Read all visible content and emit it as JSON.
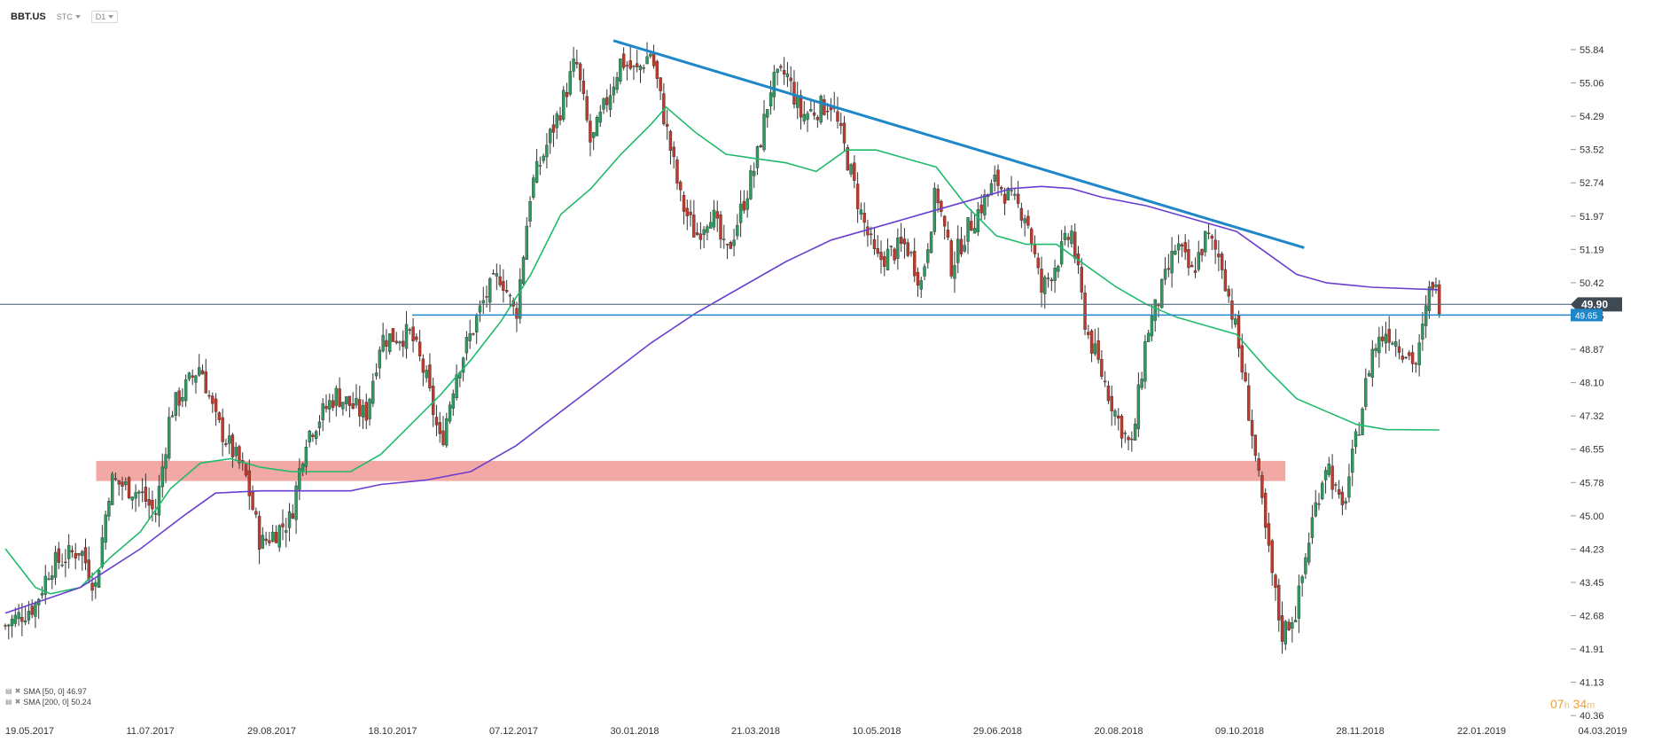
{
  "header": {
    "symbol": "BBT.US",
    "source": "STC",
    "interval": "D1"
  },
  "legend": {
    "sma50_label": "SMA [50, 0] 46.97",
    "sma200_label": "SMA [200, 0] 50.24"
  },
  "timer": {
    "hours": "07",
    "hours_unit": "h",
    "minutes": "34",
    "minutes_unit": "m"
  },
  "colors": {
    "candle_up": "#2e9a5f",
    "candle_down": "#c0392b",
    "candle_wick": "#333333",
    "sma50": "#1fba6b",
    "sma200": "#6a3fd0",
    "trendline": "#1f86c8",
    "support_line": "#1f86c8",
    "current_line": "#5c6f7c",
    "zone": "#f09a96"
  },
  "chart_data": {
    "type": "candlestick",
    "y_ticks": [
      "55.84",
      "55.06",
      "54.29",
      "53.52",
      "52.74",
      "51.97",
      "51.19",
      "50.42",
      "49.65",
      "48.87",
      "48.10",
      "47.32",
      "46.55",
      "45.78",
      "45.00",
      "44.23",
      "43.45",
      "42.68",
      "41.91",
      "41.13",
      "40.36"
    ],
    "x_ticks": [
      "19.05.2017",
      "11.07.2017",
      "29.08.2017",
      "18.10.2017",
      "07.12.2017",
      "30.01.2018",
      "21.03.2018",
      "10.05.2018",
      "29.06.2018",
      "20.08.2018",
      "09.10.2018",
      "28.11.2018",
      "22.01.2019",
      "04.03.2019"
    ],
    "ylim": [
      40.36,
      56.0
    ],
    "current_price": "49.90",
    "support_price": "49.65",
    "support_zone": [
      45.78,
      46.25
    ],
    "price_path": [
      [
        0,
        42.4
      ],
      [
        0.02,
        42.9
      ],
      [
        0.03,
        43.8
      ],
      [
        0.05,
        44.2
      ],
      [
        0.06,
        43.3
      ],
      [
        0.07,
        45.8
      ],
      [
        0.09,
        45.5
      ],
      [
        0.1,
        45.0
      ],
      [
        0.11,
        47.4
      ],
      [
        0.13,
        48.5
      ],
      [
        0.14,
        47.2
      ],
      [
        0.16,
        45.9
      ],
      [
        0.17,
        44.3
      ],
      [
        0.19,
        44.9
      ],
      [
        0.2,
        46.8
      ],
      [
        0.22,
        47.8
      ],
      [
        0.24,
        47.3
      ],
      [
        0.25,
        49.1
      ],
      [
        0.27,
        49.2
      ],
      [
        0.28,
        48.2
      ],
      [
        0.29,
        46.6
      ],
      [
        0.3,
        48.3
      ],
      [
        0.32,
        50.1
      ],
      [
        0.33,
        50.6
      ],
      [
        0.34,
        49.6
      ],
      [
        0.35,
        52.6
      ],
      [
        0.37,
        54.5
      ],
      [
        0.38,
        55.6
      ],
      [
        0.39,
        53.6
      ],
      [
        0.41,
        55.6
      ],
      [
        0.42,
        55.3
      ],
      [
        0.43,
        55.8
      ],
      [
        0.45,
        52.3
      ],
      [
        0.46,
        51.5
      ],
      [
        0.47,
        52.1
      ],
      [
        0.48,
        51.0
      ],
      [
        0.5,
        53.2
      ],
      [
        0.51,
        55.0
      ],
      [
        0.52,
        55.3
      ],
      [
        0.53,
        54.3
      ],
      [
        0.55,
        54.6
      ],
      [
        0.56,
        53.4
      ],
      [
        0.57,
        52.0
      ],
      [
        0.58,
        50.9
      ],
      [
        0.6,
        51.3
      ],
      [
        0.61,
        50.4
      ],
      [
        0.62,
        52.6
      ],
      [
        0.63,
        50.8
      ],
      [
        0.64,
        51.6
      ],
      [
        0.66,
        52.8
      ],
      [
        0.67,
        52.3
      ],
      [
        0.68,
        52.0
      ],
      [
        0.69,
        50.2
      ],
      [
        0.71,
        51.6
      ],
      [
        0.72,
        49.3
      ],
      [
        0.73,
        48.3
      ],
      [
        0.74,
        47.3
      ],
      [
        0.75,
        46.5
      ],
      [
        0.76,
        49.2
      ],
      [
        0.77,
        50.2
      ],
      [
        0.78,
        51.3
      ],
      [
        0.79,
        50.6
      ],
      [
        0.8,
        51.5
      ],
      [
        0.81,
        50.9
      ],
      [
        0.82,
        49.2
      ],
      [
        0.83,
        47.0
      ],
      [
        0.84,
        44.4
      ],
      [
        0.85,
        42.2
      ],
      [
        0.86,
        42.8
      ],
      [
        0.87,
        44.8
      ],
      [
        0.88,
        46.3
      ],
      [
        0.89,
        45.0
      ],
      [
        0.9,
        46.8
      ],
      [
        0.91,
        48.8
      ],
      [
        0.92,
        49.3
      ],
      [
        0.93,
        48.9
      ],
      [
        0.94,
        48.5
      ],
      [
        0.95,
        50.5
      ],
      [
        0.955,
        49.95
      ]
    ],
    "series": [
      {
        "name": "SMA [50, 0]",
        "values": [
          [
            0,
            44.2
          ],
          [
            0.02,
            43.3
          ],
          [
            0.03,
            43.15
          ],
          [
            0.05,
            43.3
          ],
          [
            0.07,
            44.0
          ],
          [
            0.09,
            44.6
          ],
          [
            0.11,
            45.6
          ],
          [
            0.13,
            46.2
          ],
          [
            0.15,
            46.3
          ],
          [
            0.17,
            46.1
          ],
          [
            0.19,
            46.0
          ],
          [
            0.21,
            46.0
          ],
          [
            0.23,
            46.0
          ],
          [
            0.25,
            46.4
          ],
          [
            0.27,
            47.1
          ],
          [
            0.29,
            47.8
          ],
          [
            0.31,
            48.6
          ],
          [
            0.33,
            49.5
          ],
          [
            0.35,
            50.6
          ],
          [
            0.37,
            52.0
          ],
          [
            0.39,
            52.6
          ],
          [
            0.41,
            53.4
          ],
          [
            0.43,
            54.1
          ],
          [
            0.44,
            54.5
          ],
          [
            0.46,
            53.9
          ],
          [
            0.48,
            53.4
          ],
          [
            0.5,
            53.3
          ],
          [
            0.52,
            53.2
          ],
          [
            0.54,
            53.0
          ],
          [
            0.56,
            53.5
          ],
          [
            0.58,
            53.5
          ],
          [
            0.6,
            53.3
          ],
          [
            0.62,
            53.1
          ],
          [
            0.64,
            52.2
          ],
          [
            0.66,
            51.5
          ],
          [
            0.68,
            51.3
          ],
          [
            0.7,
            51.3
          ],
          [
            0.72,
            50.8
          ],
          [
            0.74,
            50.3
          ],
          [
            0.76,
            49.9
          ],
          [
            0.78,
            49.6
          ],
          [
            0.8,
            49.4
          ],
          [
            0.82,
            49.2
          ],
          [
            0.84,
            48.4
          ],
          [
            0.86,
            47.7
          ],
          [
            0.88,
            47.4
          ],
          [
            0.9,
            47.1
          ],
          [
            0.92,
            46.98
          ],
          [
            0.955,
            46.97
          ]
        ]
      },
      {
        "name": "SMA [200, 0]",
        "values": [
          [
            0,
            42.7
          ],
          [
            0.05,
            43.3
          ],
          [
            0.09,
            44.2
          ],
          [
            0.12,
            45.0
          ],
          [
            0.14,
            45.5
          ],
          [
            0.17,
            45.55
          ],
          [
            0.2,
            45.55
          ],
          [
            0.23,
            45.55
          ],
          [
            0.25,
            45.7
          ],
          [
            0.28,
            45.8
          ],
          [
            0.31,
            46.0
          ],
          [
            0.34,
            46.6
          ],
          [
            0.37,
            47.4
          ],
          [
            0.4,
            48.2
          ],
          [
            0.43,
            49.0
          ],
          [
            0.46,
            49.7
          ],
          [
            0.49,
            50.3
          ],
          [
            0.52,
            50.9
          ],
          [
            0.55,
            51.4
          ],
          [
            0.58,
            51.7
          ],
          [
            0.61,
            52.0
          ],
          [
            0.64,
            52.3
          ],
          [
            0.67,
            52.6
          ],
          [
            0.69,
            52.65
          ],
          [
            0.71,
            52.6
          ],
          [
            0.73,
            52.4
          ],
          [
            0.76,
            52.2
          ],
          [
            0.79,
            51.9
          ],
          [
            0.82,
            51.6
          ],
          [
            0.84,
            51.1
          ],
          [
            0.86,
            50.6
          ],
          [
            0.88,
            50.4
          ],
          [
            0.91,
            50.3
          ],
          [
            0.955,
            50.24
          ]
        ]
      }
    ],
    "trendline": [
      [
        0.405,
        56.05
      ],
      [
        0.865,
        51.22
      ]
    ],
    "candle_count": 430
  }
}
